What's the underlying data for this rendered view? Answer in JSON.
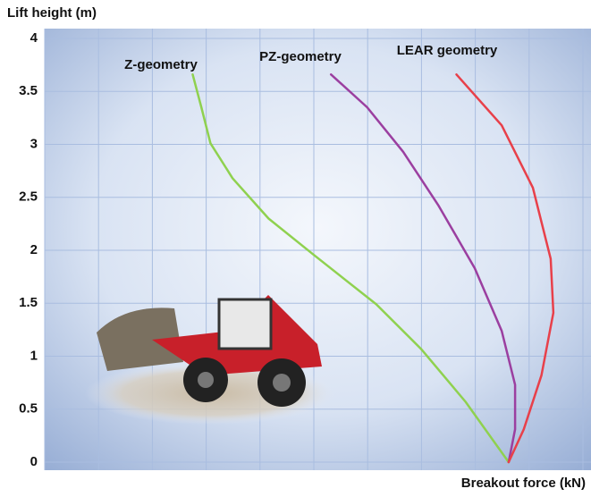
{
  "chart_data": {
    "type": "line",
    "y_label": "Lift height (m)",
    "x_label": "Breakout force (kN)",
    "xlim": [
      0,
      10.15
    ],
    "ylim": [
      0,
      4
    ],
    "yticks": [
      0,
      0.5,
      1,
      1.5,
      2,
      2.5,
      3,
      3.5,
      4
    ],
    "grid": true,
    "series": [
      {
        "name": "Z-geometry",
        "color": "#8fd14f",
        "x": [
          2.75,
          2.91,
          3.08,
          3.49,
          4.16,
          4.99,
          6.16,
          6.99,
          7.82,
          8.62
        ],
        "values": [
          3.66,
          3.35,
          3.01,
          2.68,
          2.3,
          1.96,
          1.49,
          1.07,
          0.57,
          0
        ]
      },
      {
        "name": "PZ-geometry",
        "color": "#9b3fa0",
        "x": [
          5.32,
          5.99,
          6.66,
          7.32,
          7.99,
          8.49,
          8.74,
          8.74,
          8.62
        ],
        "values": [
          3.66,
          3.35,
          2.93,
          2.42,
          1.83,
          1.24,
          0.73,
          0.31,
          0
        ]
      },
      {
        "name": "LEAR geometry",
        "color": "#e8404a",
        "x": [
          7.65,
          8.49,
          9.07,
          9.4,
          9.45,
          9.23,
          8.9,
          8.62
        ],
        "values": [
          3.66,
          3.18,
          2.59,
          1.92,
          1.41,
          0.82,
          0.31,
          0
        ]
      }
    ]
  }
}
